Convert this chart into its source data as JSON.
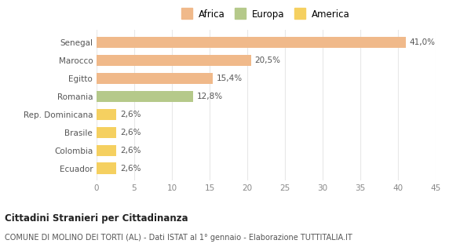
{
  "categories": [
    "Senegal",
    "Marocco",
    "Egitto",
    "Romania",
    "Rep. Dominicana",
    "Brasile",
    "Colombia",
    "Ecuador"
  ],
  "values": [
    41.0,
    20.5,
    15.4,
    12.8,
    2.6,
    2.6,
    2.6,
    2.6
  ],
  "labels": [
    "41,0%",
    "20,5%",
    "15,4%",
    "12,8%",
    "2,6%",
    "2,6%",
    "2,6%",
    "2,6%"
  ],
  "colors": [
    "#f0b98a",
    "#f0b98a",
    "#f0b98a",
    "#b5c98a",
    "#f5d060",
    "#f5d060",
    "#f5d060",
    "#f5d060"
  ],
  "legend": [
    {
      "label": "Africa",
      "color": "#f0b98a"
    },
    {
      "label": "Europa",
      "color": "#b5c98a"
    },
    {
      "label": "America",
      "color": "#f5d060"
    }
  ],
  "xlim": [
    0,
    45
  ],
  "xticks": [
    0,
    5,
    10,
    15,
    20,
    25,
    30,
    35,
    40,
    45
  ],
  "title": "Cittadini Stranieri per Cittadinanza",
  "subtitle": "COMUNE DI MOLINO DEI TORTI (AL) - Dati ISTAT al 1° gennaio - Elaborazione TUTTITALIA.IT",
  "background_color": "#ffffff",
  "grid_color": "#e8e8e8",
  "label_fontsize": 7.5,
  "ytick_fontsize": 7.5,
  "xtick_fontsize": 7.5,
  "bar_height": 0.62
}
